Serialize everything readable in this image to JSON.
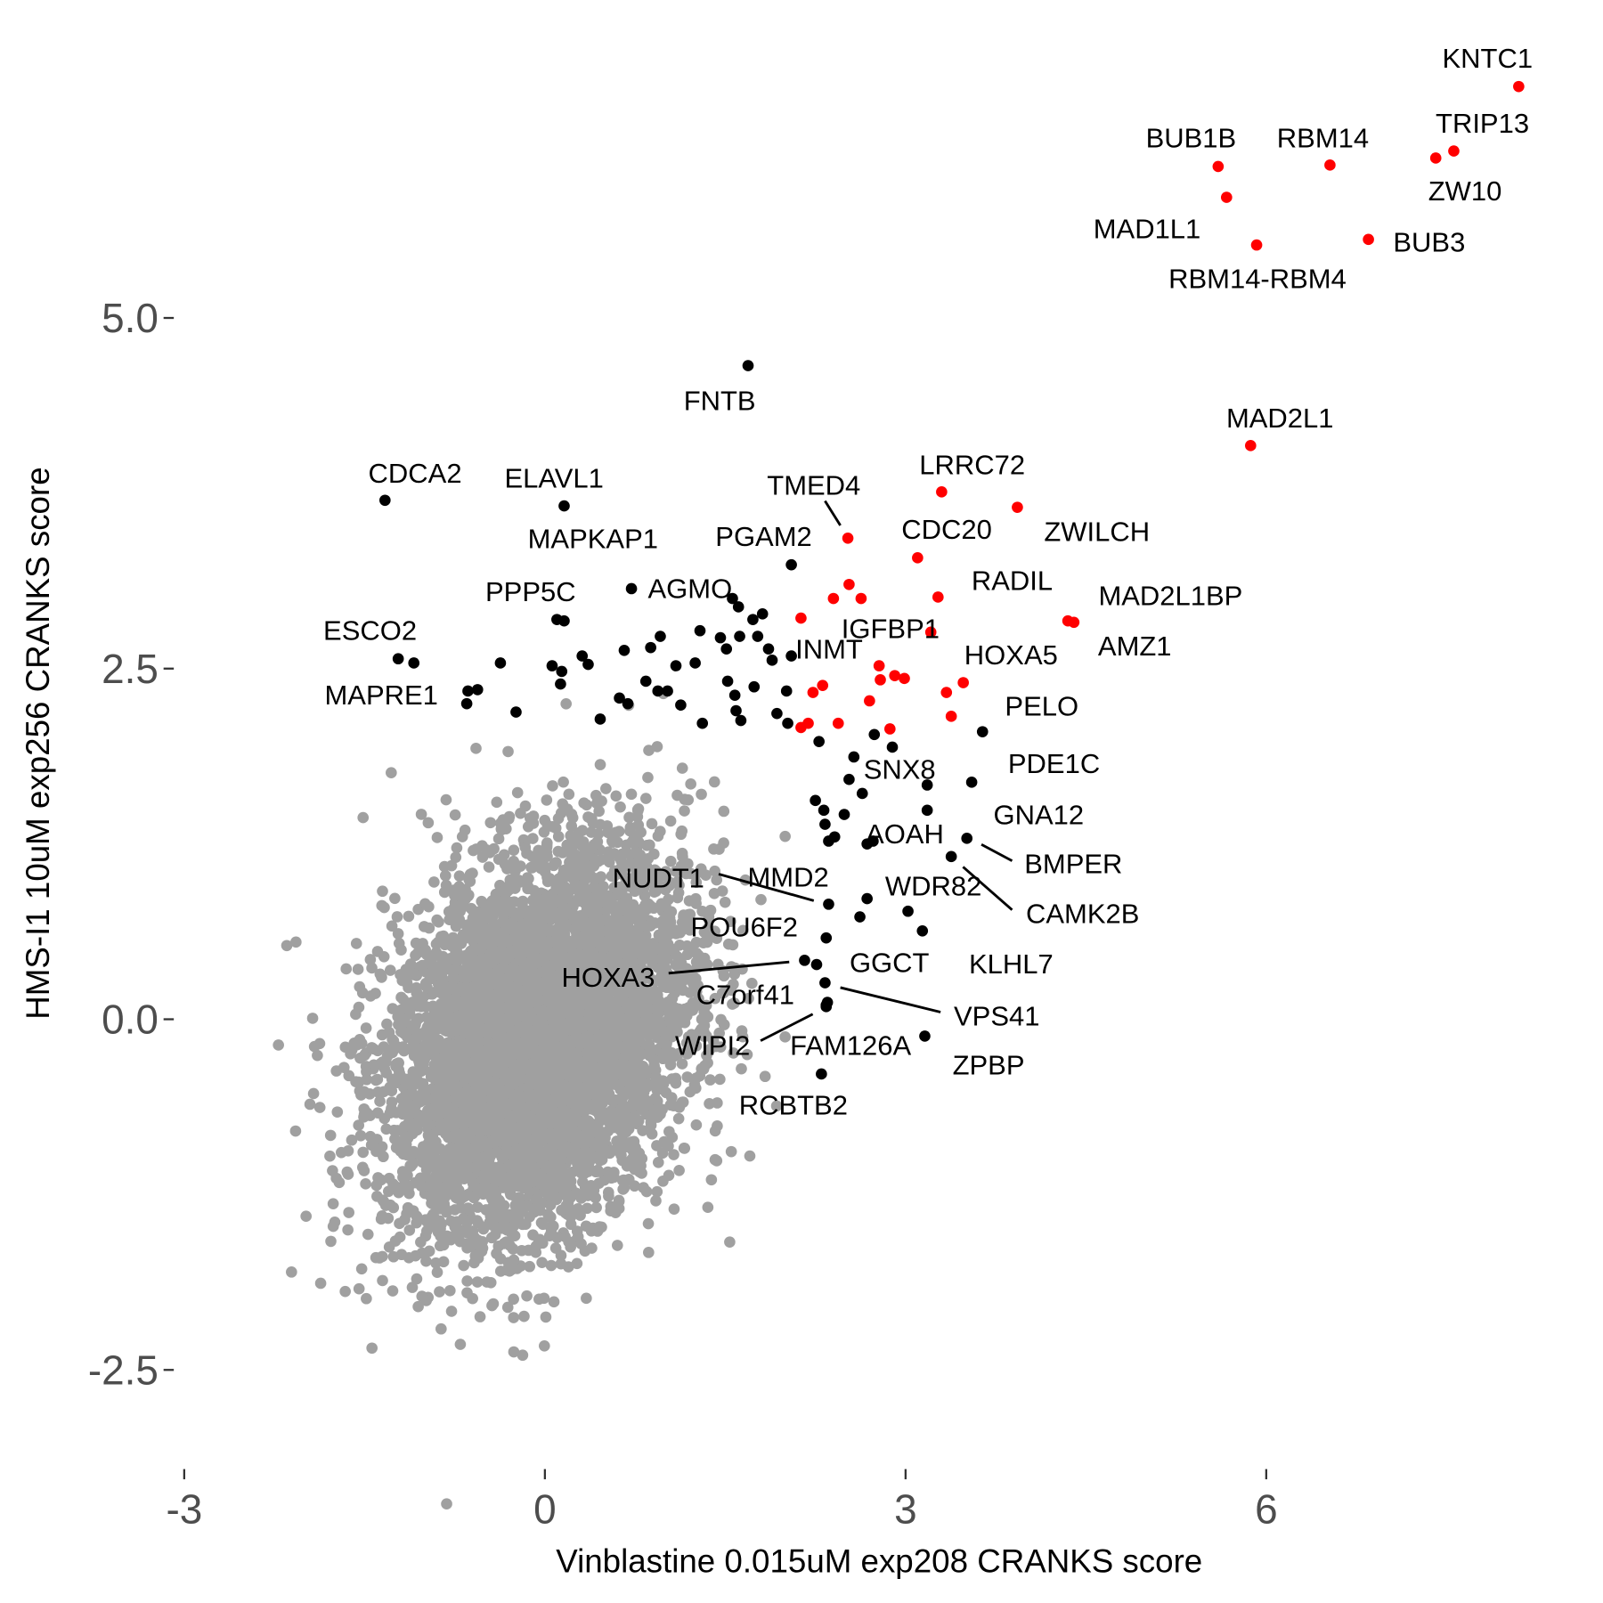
{
  "chart_data": {
    "type": "scatter",
    "title": "",
    "xlabel": "Vinblastine 0.015uM exp208 CRANKS score",
    "ylabel": "HMS-I1 10uM exp256 CRANKS score",
    "xlim": [
      -3.2,
      8.4
    ],
    "ylim": [
      -2.95,
      7.1
    ],
    "x_ticks": [
      {
        "value": -3,
        "label": "-3"
      },
      {
        "value": 0,
        "label": "0"
      },
      {
        "value": 3,
        "label": "3"
      },
      {
        "value": 6,
        "label": "6"
      }
    ],
    "y_ticks": [
      {
        "value": -2.5,
        "label": "-2.5"
      },
      {
        "value": 0,
        "label": "0.0"
      },
      {
        "value": 2.5,
        "label": "2.5"
      },
      {
        "value": 5,
        "label": "5.0"
      }
    ],
    "grid": false,
    "colors": {
      "background_genes": "#a0a0a0",
      "hit_genes": "#000000",
      "shared_hits": "#ff0000",
      "tick_text": "#4d4d4d"
    },
    "background_cloud": {
      "n": 6000,
      "mean": [
        -0.05,
        -0.15
      ],
      "sd": [
        0.62,
        0.68
      ],
      "correlation": 0.3,
      "seed": 7
    },
    "labeled_points": [
      {
        "gene": "KNTC1",
        "x": 8.1,
        "y": 6.65,
        "group": "red"
      },
      {
        "gene": "TRIP13",
        "x": 7.56,
        "y": 6.19,
        "group": "red"
      },
      {
        "gene": "ZW10",
        "x": 7.41,
        "y": 6.14,
        "group": "red"
      },
      {
        "gene": "RBM14",
        "x": 6.53,
        "y": 6.09,
        "group": "red"
      },
      {
        "gene": "BUB1B",
        "x": 5.6,
        "y": 6.08,
        "group": "red"
      },
      {
        "gene": "MAD1L1",
        "x": 5.67,
        "y": 5.86,
        "group": "red"
      },
      {
        "gene": "RBM14-RBM4",
        "x": 5.92,
        "y": 5.52,
        "group": "red"
      },
      {
        "gene": "BUB3",
        "x": 6.85,
        "y": 5.56,
        "group": "red"
      },
      {
        "gene": "MAD2L1",
        "x": 5.87,
        "y": 4.09,
        "group": "red"
      },
      {
        "gene": "FNTB",
        "x": 1.69,
        "y": 4.66,
        "group": "black"
      },
      {
        "gene": "CDCA2",
        "x": -1.33,
        "y": 3.7,
        "group": "black"
      },
      {
        "gene": "ELAVL1",
        "x": 0.16,
        "y": 3.66,
        "group": "black"
      },
      {
        "gene": "MAPKAP1",
        "x": 0.16,
        "y": 2.84,
        "group": "black"
      },
      {
        "gene": "LRRC72",
        "x": 3.3,
        "y": 3.76,
        "group": "red"
      },
      {
        "gene": "TMED4",
        "x": 2.52,
        "y": 3.43,
        "group": "red"
      },
      {
        "gene": "ZWILCH",
        "x": 3.93,
        "y": 3.65,
        "group": "red"
      },
      {
        "gene": "CDC20",
        "x": 3.1,
        "y": 3.29,
        "group": "red"
      },
      {
        "gene": "PGAM2",
        "x": 2.05,
        "y": 3.24,
        "group": "black"
      },
      {
        "gene": "RADIL",
        "x": 3.27,
        "y": 3.01,
        "group": "red"
      },
      {
        "gene": "MAD2L1BP",
        "x": 4.35,
        "y": 2.84,
        "group": "red"
      },
      {
        "gene": "AMZ1",
        "x": 4.4,
        "y": 2.83,
        "group": "red"
      },
      {
        "gene": "AGMO",
        "x": 0.72,
        "y": 3.07,
        "group": "black"
      },
      {
        "gene": "PPP5C",
        "x": 0.1,
        "y": 2.85,
        "group": "black"
      },
      {
        "gene": "IGFBP1",
        "x": 3.21,
        "y": 2.76,
        "group": "red"
      },
      {
        "gene": "INMT",
        "x": 2.05,
        "y": 2.59,
        "group": "black"
      },
      {
        "gene": "HOXA5",
        "x": 3.48,
        "y": 2.4,
        "group": "red"
      },
      {
        "gene": "ESCO2",
        "x": -1.22,
        "y": 2.57,
        "group": "black"
      },
      {
        "gene": "MAPRE1",
        "x": -1.09,
        "y": 2.54,
        "group": "black"
      },
      {
        "gene": "PELO",
        "x": 3.64,
        "y": 2.05,
        "group": "black"
      },
      {
        "gene": "SNX8",
        "x": 3.18,
        "y": 1.67,
        "group": "black"
      },
      {
        "gene": "PDE1C",
        "x": 3.55,
        "y": 1.69,
        "group": "black"
      },
      {
        "gene": "GNA12",
        "x": 3.18,
        "y": 1.49,
        "group": "black"
      },
      {
        "gene": "AOAH",
        "x": 2.73,
        "y": 1.27,
        "group": "black"
      },
      {
        "gene": "BMPER",
        "x": 3.51,
        "y": 1.29,
        "group": "black"
      },
      {
        "gene": "CAMK2B",
        "x": 3.38,
        "y": 1.16,
        "group": "black"
      },
      {
        "gene": "NUDT1",
        "x": 2.36,
        "y": 0.82,
        "group": "black"
      },
      {
        "gene": "MMD2",
        "x": 2.68,
        "y": 0.86,
        "group": "black"
      },
      {
        "gene": "WDR82",
        "x": 3.02,
        "y": 0.77,
        "group": "black"
      },
      {
        "gene": "POU6F2",
        "x": 2.34,
        "y": 0.58,
        "group": "black"
      },
      {
        "gene": "KLHL7",
        "x": 3.14,
        "y": 0.63,
        "group": "black"
      },
      {
        "gene": "GGCT",
        "x": 2.26,
        "y": 0.39,
        "group": "black"
      },
      {
        "gene": "HOXA3",
        "x": 2.16,
        "y": 0.42,
        "group": "black"
      },
      {
        "gene": "VPS41",
        "x": 2.33,
        "y": 0.26,
        "group": "black"
      },
      {
        "gene": "C7orf41",
        "x": 2.34,
        "y": 0.1,
        "group": "black"
      },
      {
        "gene": "WIPI2",
        "x": 2.34,
        "y": 0.09,
        "group": "black"
      },
      {
        "gene": "FAM126A",
        "x": 2.35,
        "y": 0.12,
        "group": "black"
      },
      {
        "gene": "ZPBP",
        "x": 3.16,
        "y": -0.12,
        "group": "black"
      },
      {
        "gene": "RCBTB2",
        "x": 2.3,
        "y": -0.39,
        "group": "black"
      }
    ],
    "unlabeled_red": [
      [
        2.13,
        2.86
      ],
      [
        2.4,
        3.0
      ],
      [
        2.53,
        3.1
      ],
      [
        2.63,
        3.0
      ],
      [
        2.78,
        2.52
      ],
      [
        2.79,
        2.42
      ],
      [
        2.91,
        2.45
      ],
      [
        2.99,
        2.43
      ],
      [
        2.31,
        2.38
      ],
      [
        2.23,
        2.33
      ],
      [
        2.7,
        2.27
      ],
      [
        3.34,
        2.33
      ],
      [
        3.38,
        2.16
      ],
      [
        2.13,
        2.08
      ],
      [
        2.19,
        2.11
      ],
      [
        2.44,
        2.11
      ],
      [
        2.87,
        2.07
      ]
    ],
    "unlabeled_black": [
      [
        -0.64,
        2.34
      ],
      [
        -0.56,
        2.35
      ],
      [
        -0.65,
        2.25
      ],
      [
        -0.37,
        2.54
      ],
      [
        -0.24,
        2.19
      ],
      [
        0.06,
        2.52
      ],
      [
        0.14,
        2.48
      ],
      [
        0.13,
        2.39
      ],
      [
        0.31,
        2.59
      ],
      [
        0.36,
        2.53
      ],
      [
        0.46,
        2.14
      ],
      [
        0.66,
        2.63
      ],
      [
        0.88,
        2.65
      ],
      [
        0.96,
        2.73
      ],
      [
        1.09,
        2.52
      ],
      [
        1.25,
        2.54
      ],
      [
        1.29,
        2.77
      ],
      [
        1.46,
        2.72
      ],
      [
        1.51,
        2.64
      ],
      [
        1.52,
        2.41
      ],
      [
        1.56,
        3.0
      ],
      [
        1.58,
        2.31
      ],
      [
        1.61,
        2.94
      ],
      [
        1.62,
        2.73
      ],
      [
        1.73,
        2.85
      ],
      [
        1.77,
        2.73
      ],
      [
        1.81,
        2.89
      ],
      [
        1.86,
        2.64
      ],
      [
        1.89,
        2.56
      ],
      [
        1.74,
        2.37
      ],
      [
        1.59,
        2.2
      ],
      [
        1.63,
        2.13
      ],
      [
        1.93,
        2.18
      ],
      [
        2.01,
        2.34
      ],
      [
        2.02,
        2.11
      ],
      [
        0.84,
        2.41
      ],
      [
        0.94,
        2.34
      ],
      [
        1.02,
        2.34
      ],
      [
        1.13,
        2.24
      ],
      [
        1.31,
        2.11
      ],
      [
        0.62,
        2.29
      ],
      [
        0.69,
        2.25
      ],
      [
        2.28,
        1.98
      ],
      [
        2.57,
        1.87
      ],
      [
        2.74,
        2.03
      ],
      [
        2.89,
        1.94
      ],
      [
        2.53,
        1.71
      ],
      [
        2.64,
        1.61
      ],
      [
        2.25,
        1.56
      ],
      [
        2.32,
        1.49
      ],
      [
        2.33,
        1.39
      ],
      [
        2.49,
        1.46
      ],
      [
        2.36,
        1.27
      ],
      [
        2.41,
        1.3
      ],
      [
        2.68,
        1.25
      ],
      [
        2.62,
        0.73
      ]
    ]
  }
}
